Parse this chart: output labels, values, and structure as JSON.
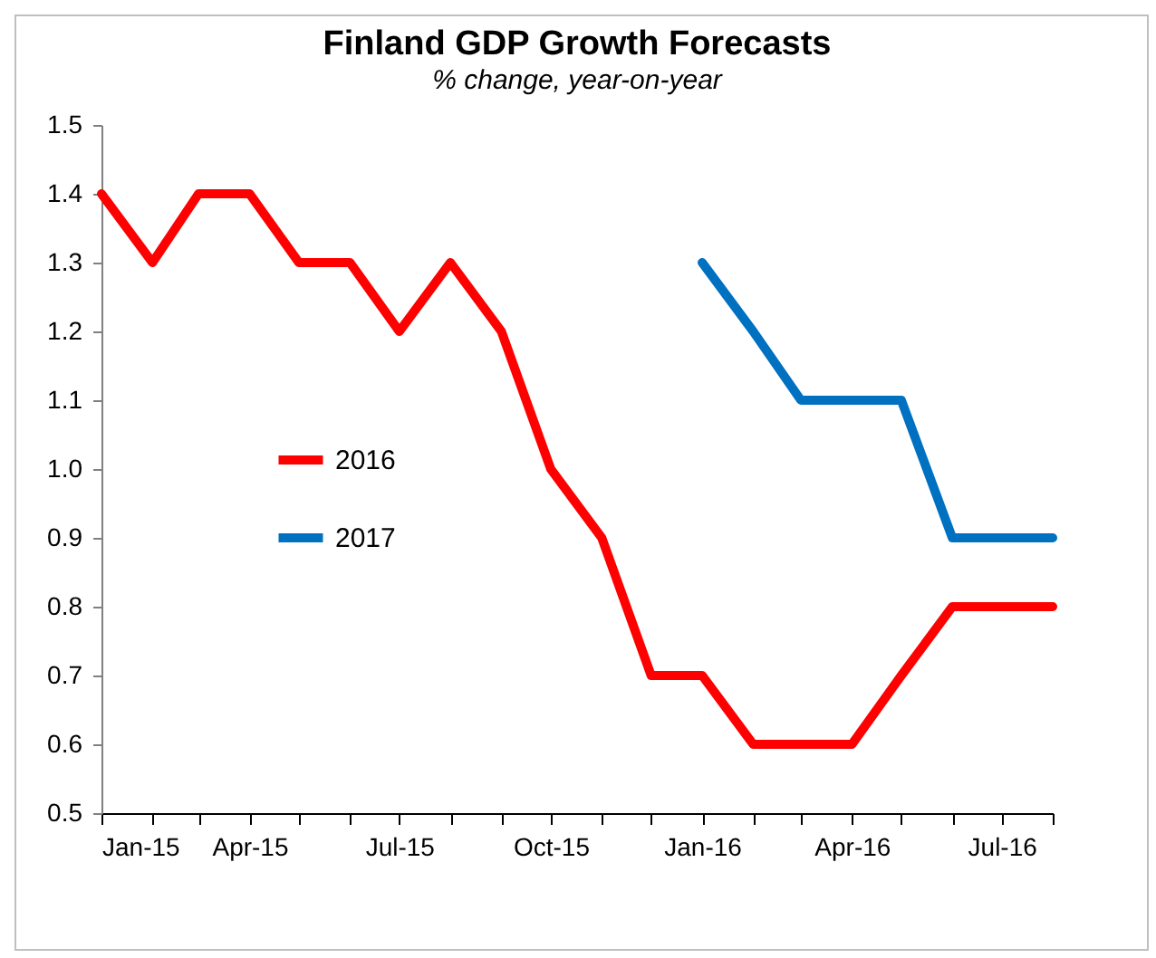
{
  "chart_data": {
    "type": "line",
    "title": "Finland  GDP Growth Forecasts",
    "subtitle": "% change, year-on-year",
    "x": [
      "2015-01",
      "2015-02",
      "2015-03",
      "2015-04",
      "2015-05",
      "2015-06",
      "2015-07",
      "2015-08",
      "2015-09",
      "2015-10",
      "2015-11",
      "2015-12",
      "2016-01",
      "2016-02",
      "2016-03",
      "2016-04",
      "2016-05",
      "2016-06",
      "2016-07",
      "2016-08"
    ],
    "series": [
      {
        "name": "2016",
        "color": "#ff0000",
        "values": [
          1.4,
          1.3,
          1.4,
          1.4,
          1.3,
          1.3,
          1.2,
          1.3,
          1.2,
          1.0,
          0.9,
          0.7,
          0.7,
          0.6,
          0.6,
          0.6,
          0.7,
          0.8,
          0.8,
          0.8
        ]
      },
      {
        "name": "2017",
        "color": "#0070c0",
        "values": [
          null,
          null,
          null,
          null,
          null,
          null,
          null,
          null,
          null,
          null,
          null,
          null,
          1.3,
          1.2,
          1.1,
          1.1,
          1.1,
          0.9,
          0.9,
          0.9
        ]
      }
    ],
    "xlim": [
      "2015-01",
      "2016-08"
    ],
    "xticks": [
      {
        "value": "2015-01",
        "label": "Jan-15"
      },
      {
        "value": "2015-02",
        "label": null
      },
      {
        "value": "2015-03",
        "label": null
      },
      {
        "value": "2015-04",
        "label": "Apr-15"
      },
      {
        "value": "2015-05",
        "label": null
      },
      {
        "value": "2015-06",
        "label": null
      },
      {
        "value": "2015-07",
        "label": "Jul-15"
      },
      {
        "value": "2015-08",
        "label": null
      },
      {
        "value": "2015-09",
        "label": null
      },
      {
        "value": "2015-10",
        "label": "Oct-15"
      },
      {
        "value": "2015-11",
        "label": null
      },
      {
        "value": "2015-12",
        "label": null
      },
      {
        "value": "2016-01",
        "label": "Jan-16"
      },
      {
        "value": "2016-02",
        "label": null
      },
      {
        "value": "2016-03",
        "label": null
      },
      {
        "value": "2016-04",
        "label": "Apr-16"
      },
      {
        "value": "2016-05",
        "label": null
      },
      {
        "value": "2016-06",
        "label": null
      },
      {
        "value": "2016-07",
        "label": "Jul-16"
      },
      {
        "value": "2016-08",
        "label": null
      }
    ],
    "ylim": [
      0.5,
      1.5
    ],
    "yticks": [
      0.5,
      0.6,
      0.7,
      0.8,
      0.9,
      {
        "value": 1,
        "label": "1.0"
      },
      1.1,
      1.2,
      1.3,
      1.4,
      1.5
    ],
    "grid": false,
    "legend": "left",
    "marker": "none",
    "line_style": "solid"
  }
}
